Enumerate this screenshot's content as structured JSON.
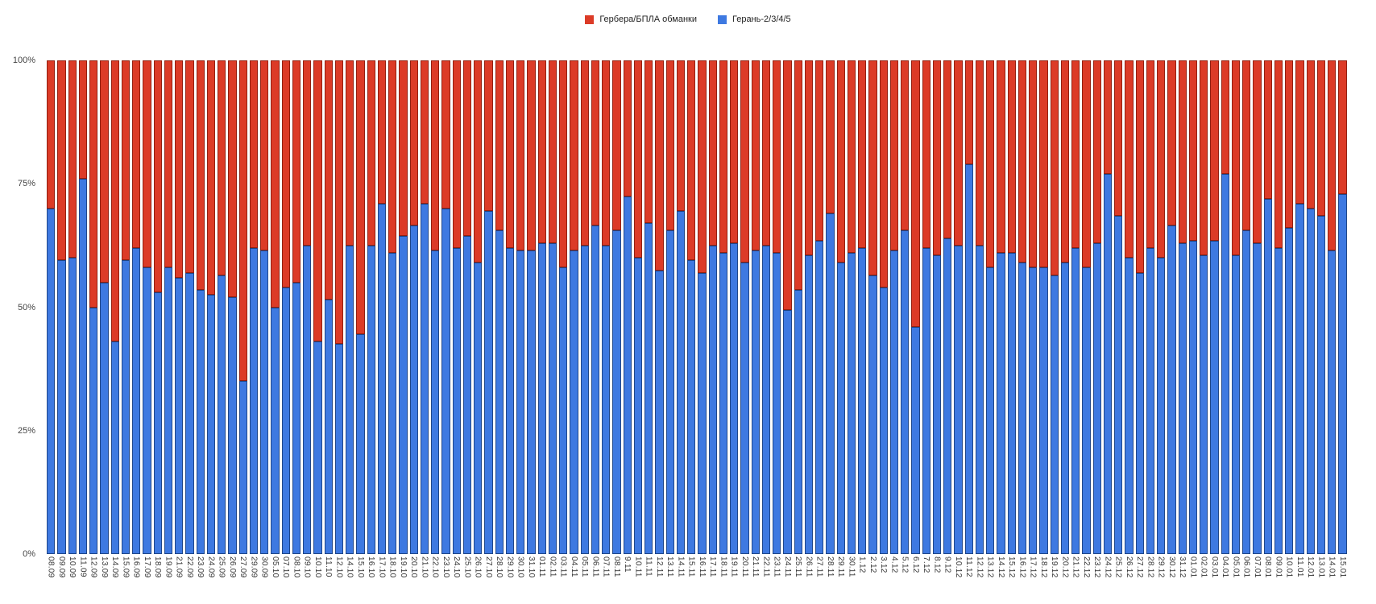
{
  "legend": {
    "items": [
      {
        "label": "Гербера/БПЛА обманки",
        "color": "#dc3b27"
      },
      {
        "label": "Герань-2/3/4/5",
        "color": "#3e79e1"
      }
    ]
  },
  "y_axis": {
    "tick_labels": [
      "100%",
      "75%",
      "50%",
      "25%",
      "0%"
    ],
    "tick_values": [
      100,
      75,
      50,
      25,
      0
    ]
  },
  "chart_data": {
    "type": "bar",
    "stacked": true,
    "percent_stacked": true,
    "title": "",
    "xlabel": "",
    "ylabel": "",
    "ylim": [
      0,
      100
    ],
    "y_ticks_percent": [
      "0%",
      "25%",
      "50%",
      "75%",
      "100%"
    ],
    "grid": false,
    "legend_position": "top-center",
    "categories": [
      "08.09",
      "09.09",
      "10.09",
      "11.09",
      "12.09",
      "13.09",
      "14.09",
      "15.09",
      "16.09",
      "17.09",
      "18.09",
      "19.09",
      "21.09",
      "22.09",
      "23.09",
      "24.09",
      "25.09",
      "26.09",
      "27.09",
      "29.09",
      "30.09",
      "05.10",
      "07.10",
      "08.10",
      "09.10",
      "10.10",
      "11.10",
      "12.10",
      "14.10",
      "15.10",
      "16.10",
      "17.10",
      "18.10",
      "19.10",
      "20.10",
      "21.10",
      "22.10",
      "23.10",
      "24.10",
      "25.10",
      "26.10",
      "27.10",
      "28.10",
      "29.10",
      "30.10",
      "31.10",
      "01.11",
      "02.11",
      "03.11",
      "04.11",
      "05.11",
      "06.11",
      "07.11",
      "08.11",
      "9.11",
      "10.11",
      "11.11",
      "12.11",
      "13.11",
      "14.11",
      "15.11",
      "16.11",
      "17.11",
      "18.11",
      "19.11",
      "20.11",
      "21.11",
      "22.11",
      "23.11",
      "24.11",
      "25.11",
      "26.11",
      "27.11",
      "28.11",
      "29.11",
      "30.11",
      "1.12",
      "2.12",
      "3.12",
      "4.12",
      "5.12",
      "6.12",
      "7.12",
      "8.12",
      "9.12",
      "10.12",
      "11.12",
      "12.12",
      "13.12",
      "14.12",
      "15.12",
      "16.12",
      "17.12",
      "18.12",
      "19.12",
      "20.12",
      "21.12",
      "22.12",
      "23.12",
      "24.12",
      "25.12",
      "26.12",
      "27.12",
      "28.12",
      "29.12",
      "30.12",
      "31.12",
      "01.01",
      "02.01",
      "03.01",
      "04.01",
      "05.01",
      "06.01",
      "07.01",
      "08.01",
      "09.01",
      "10.01",
      "11.01",
      "12.01",
      "13.01",
      "14.01",
      "15.01"
    ],
    "series": [
      {
        "name": "Герань-2/3/4/5",
        "color": "#3e79e1",
        "values": [
          70,
          59.5,
          60,
          76,
          50,
          55,
          43,
          59.5,
          62,
          58,
          53,
          58,
          56,
          57,
          53.5,
          52.5,
          56.5,
          52,
          35,
          62,
          61.5,
          50,
          54,
          55,
          62.5,
          43,
          51.5,
          42.5,
          62.5,
          44.5,
          62.5,
          71,
          61,
          64.5,
          66.5,
          71,
          61.5,
          70,
          62,
          64.5,
          59,
          69.5,
          65.5,
          62,
          61.5,
          61.5,
          63,
          63,
          58,
          61.5,
          62.5,
          66.5,
          62.5,
          65.5,
          72.5,
          60,
          67,
          57.5,
          65.5,
          69.5,
          59.5,
          57,
          62.5,
          61,
          63,
          59,
          61.5,
          62.5,
          61,
          49.5,
          53.5,
          60.5,
          63.5,
          69,
          59,
          61,
          62,
          56.5,
          54,
          61.5,
          65.5,
          46,
          62,
          60.5,
          64,
          62.5,
          79,
          62.5,
          58,
          61,
          61,
          59,
          58,
          58,
          56.5,
          59,
          62,
          58,
          63,
          77,
          68.5,
          60,
          57,
          62,
          60,
          66.5,
          63,
          63.5,
          60.5,
          63.5,
          77,
          60.5,
          65.5,
          63,
          72,
          62,
          66,
          71,
          70,
          68.5,
          61.5,
          73
        ]
      },
      {
        "name": "Гербера/БПЛА обманки",
        "color": "#dc3b27",
        "values": [
          30,
          40.5,
          40,
          24,
          50,
          45,
          57,
          40.5,
          38,
          42,
          47,
          42,
          44,
          43,
          46.5,
          47.5,
          43.5,
          48,
          65,
          38,
          38.5,
          50,
          46,
          45,
          37.5,
          57,
          48.5,
          57.5,
          37.5,
          55.5,
          37.5,
          29,
          39,
          35.5,
          33.5,
          29,
          38.5,
          30,
          38,
          35.5,
          41,
          30.5,
          34.5,
          38,
          38.5,
          38.5,
          37,
          37,
          42,
          38.5,
          37.5,
          33.5,
          37.5,
          34.5,
          27.5,
          40,
          33,
          42.5,
          34.5,
          30.5,
          40.5,
          43,
          37.5,
          39,
          37,
          41,
          38.5,
          37.5,
          39,
          50.5,
          46.5,
          39.5,
          36.5,
          31,
          41,
          39,
          38,
          43.5,
          46,
          38.5,
          34.5,
          54,
          38,
          39.5,
          36,
          37.5,
          21,
          37.5,
          42,
          39,
          39,
          41,
          42,
          42,
          43.5,
          41,
          38,
          42,
          37,
          23,
          31.5,
          40,
          43,
          38,
          40,
          33.5,
          37,
          36.5,
          39.5,
          36.5,
          23,
          39.5,
          34.5,
          37,
          28,
          38,
          34,
          29,
          30,
          31.5,
          38.5,
          27
        ]
      }
    ]
  }
}
